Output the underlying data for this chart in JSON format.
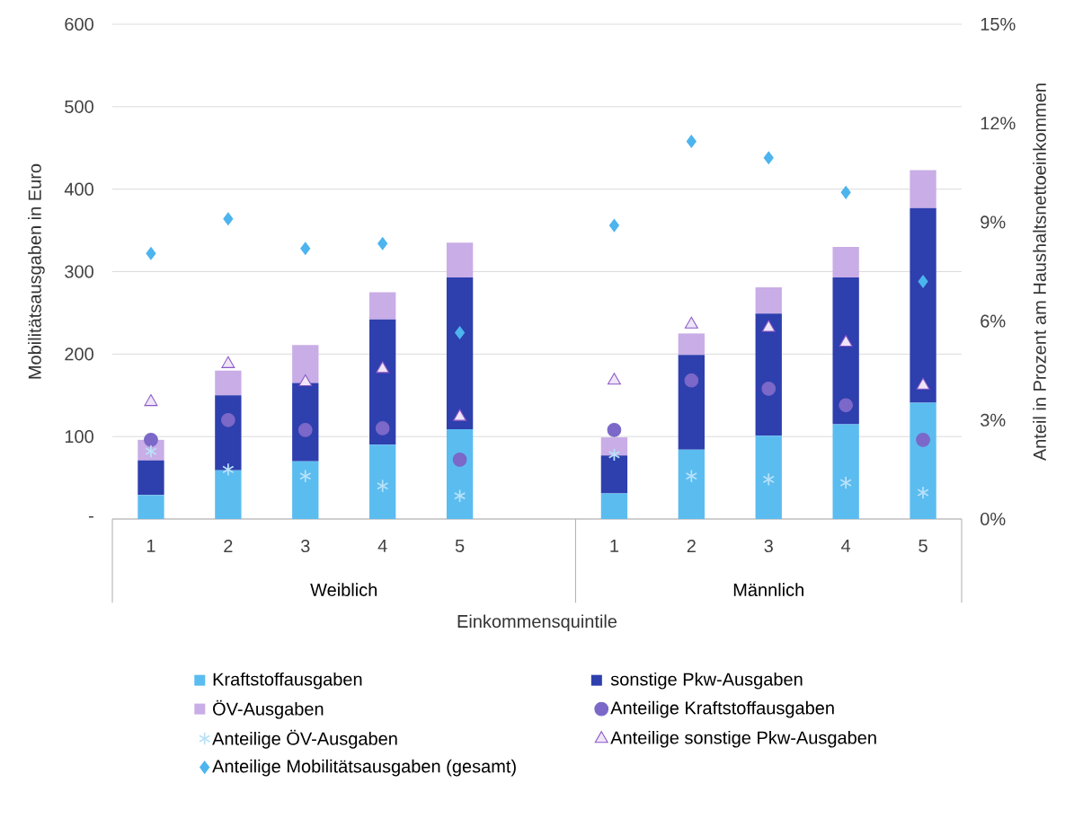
{
  "chart_data": {
    "type": "bar",
    "stacked": true,
    "xlabel": "Einkommensquintile",
    "ylabel": "Mobilitätsausgaben in Euro",
    "y2label": "Anteil in Prozent am Haushaltsnettoeinkommen",
    "categories": [
      "1",
      "2",
      "3",
      "4",
      "5",
      null,
      "1",
      "2",
      "3",
      "4",
      "5"
    ],
    "annotations": [
      "Weiblich",
      "Männlich"
    ],
    "series": [
      {
        "name": "Kraftstoffausgaben",
        "color": "#5bbcf0",
        "values": [
          29,
          59,
          70,
          90,
          109,
          null,
          31,
          84,
          101,
          115,
          141
        ]
      },
      {
        "name": "sonstige Pkw-Ausgaben",
        "color": "#2e3fae",
        "values": [
          42,
          91,
          95,
          152,
          184,
          null,
          46,
          115,
          148,
          178,
          236
        ]
      },
      {
        "name": "ÖV-Ausgaben",
        "color": "#c9ade6",
        "values": [
          25,
          30,
          46,
          33,
          42,
          null,
          22,
          26,
          32,
          37,
          46
        ]
      },
      {
        "name": "Anteilige Kraftstoffausgaben",
        "type": "scatter",
        "axis": "y2",
        "marker": "circle",
        "color": "#7b68c8",
        "values": [
          2.4,
          3.0,
          2.7,
          2.75,
          1.8,
          null,
          2.7,
          4.2,
          3.95,
          3.45,
          2.4
        ]
      },
      {
        "name": "Anteilige ÖV-Ausgaben",
        "type": "scatter",
        "axis": "y2",
        "marker": "cross",
        "color": "#b8e2f8",
        "values": [
          2.05,
          1.5,
          1.3,
          1.0,
          0.7,
          null,
          1.95,
          1.3,
          1.2,
          1.1,
          0.8
        ]
      },
      {
        "name": "Anteilige sonstige Pkw-Ausgaben",
        "type": "scatter",
        "axis": "y2",
        "marker": "triangle",
        "color": "#8b55c8",
        "values": [
          3.55,
          4.7,
          4.15,
          4.55,
          3.1,
          null,
          4.2,
          5.9,
          5.8,
          5.35,
          4.05
        ]
      },
      {
        "name": "Anteilige Mobilitätsausgaben (gesamt)",
        "type": "scatter",
        "axis": "y2",
        "marker": "diamond",
        "color": "#4db4ee",
        "values": [
          8.05,
          9.1,
          8.2,
          8.35,
          5.65,
          null,
          8.9,
          11.45,
          10.95,
          9.9,
          7.2
        ]
      }
    ],
    "ylim": [
      0,
      600
    ],
    "yticks": [
      {
        "value": 0,
        "label": "-"
      },
      100,
      200,
      300,
      400,
      500,
      600
    ],
    "y2lim": [
      0,
      15
    ],
    "y2ticks": [
      {
        "value": 0,
        "label": "0%"
      },
      {
        "value": 3,
        "label": "3%"
      },
      {
        "value": 6,
        "label": "6%"
      },
      {
        "value": 9,
        "label": "9%"
      },
      {
        "value": 12,
        "label": "12%"
      },
      {
        "value": 15,
        "label": "15%"
      }
    ],
    "grid": "y",
    "legend": "bottom"
  }
}
